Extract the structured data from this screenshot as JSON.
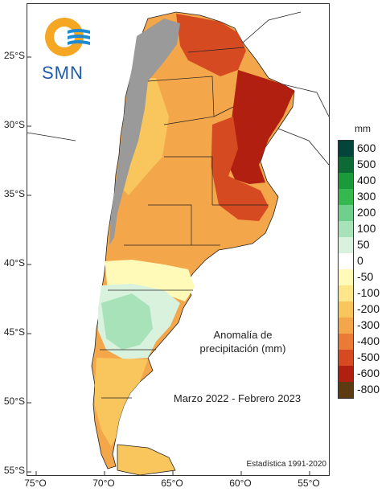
{
  "agency": {
    "name": "SMN",
    "logo_icon": "smn-sun-waves-logo"
  },
  "map": {
    "title_line1": "Anomalía de",
    "title_line2": "precipitación (mm)",
    "period": "Marzo 2022 - Febrero 2023",
    "source": "Estadística 1991-2020"
  },
  "latitude_ticks": [
    "25°S",
    "30°S",
    "35°S",
    "40°S",
    "45°S",
    "50°S",
    "55°S"
  ],
  "longitude_ticks": [
    "75°O",
    "70°O",
    "65°O",
    "60°O",
    "55°O"
  ],
  "legend": {
    "unit": "mm",
    "levels": [
      {
        "label": "600",
        "color": "#00443a"
      },
      {
        "label": "500",
        "color": "#0c6b34"
      },
      {
        "label": "400",
        "color": "#1b9a3c"
      },
      {
        "label": "300",
        "color": "#35b94f"
      },
      {
        "label": "200",
        "color": "#6fd08c"
      },
      {
        "label": "100",
        "color": "#a8e2b8"
      },
      {
        "label": "50",
        "color": "#d8f2de"
      },
      {
        "label": "0",
        "color": "#ffffff"
      },
      {
        "label": "-50",
        "color": "#fffab8"
      },
      {
        "label": "-100",
        "color": "#fde68a"
      },
      {
        "label": "-200",
        "color": "#f8c65c"
      },
      {
        "label": "-300",
        "color": "#f4a64a"
      },
      {
        "label": "-400",
        "color": "#ea7a36"
      },
      {
        "label": "-500",
        "color": "#d64a22"
      },
      {
        "label": "-600",
        "color": "#b01f10"
      },
      {
        "label": "-800",
        "color": "#5c3a12"
      }
    ]
  },
  "colors": {
    "andes_terrain": "#9a9a9a",
    "border_line": "#222222"
  }
}
